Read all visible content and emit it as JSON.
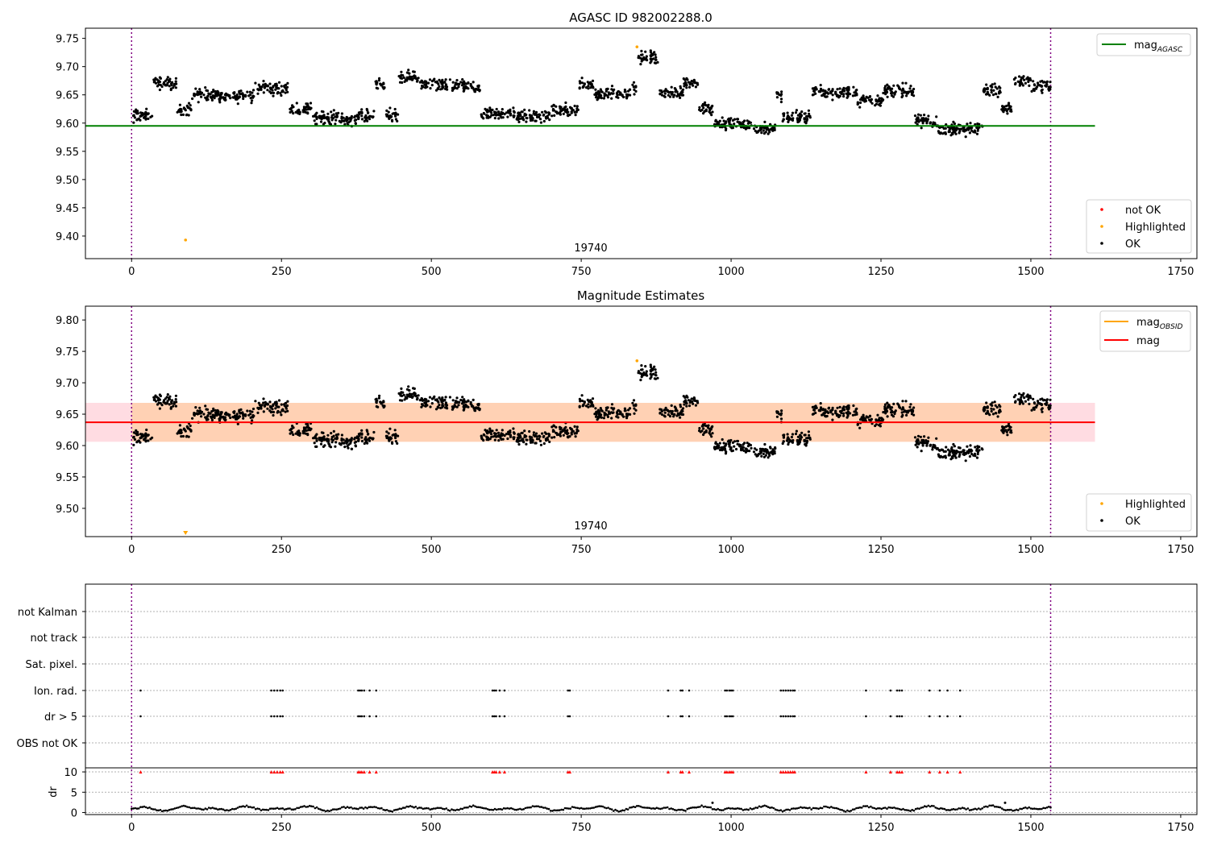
{
  "chart_data": [
    {
      "type": "scatter",
      "title": "AGASC ID 982002288.0",
      "xlabel": "",
      "ylabel": "",
      "xlim": [
        -77,
        1777
      ],
      "ylim": [
        9.36,
        9.768
      ],
      "x_ticks": [
        "0",
        "250",
        "500",
        "750",
        "1000",
        "1250",
        "1500",
        "1750"
      ],
      "y_ticks": [
        "9.40",
        "9.45",
        "9.50",
        "9.55",
        "9.60",
        "9.65",
        "9.70",
        "9.75"
      ],
      "grid": false,
      "obsid_label": "19740",
      "obsid_x": 764,
      "boundaries_x": [
        0,
        1533
      ],
      "reference_line": {
        "name": "mag_AGASC",
        "y": 9.595,
        "x_range": [
          -77,
          1607
        ],
        "color": "#008000"
      },
      "legend_lines": [
        {
          "label": "mag",
          "sub": "AGASC",
          "color": "#008000"
        }
      ],
      "legend_points": [
        {
          "label": "not OK",
          "color": "#ff0000"
        },
        {
          "label": "Highlighted",
          "color": "#ffa500"
        },
        {
          "label": "OK",
          "color": "#000000"
        }
      ],
      "highlighted": [
        {
          "x": 90,
          "y": 9.393
        },
        {
          "x": 843,
          "y": 9.735
        }
      ]
    },
    {
      "type": "scatter",
      "title": "Magnitude Estimates",
      "xlabel": "",
      "ylabel": "",
      "xlim": [
        -77,
        1777
      ],
      "ylim": [
        9.455,
        9.822
      ],
      "x_ticks": [
        "0",
        "250",
        "500",
        "750",
        "1000",
        "1250",
        "1500",
        "1750"
      ],
      "y_ticks": [
        "9.50",
        "9.55",
        "9.60",
        "9.65",
        "9.70",
        "9.75",
        "9.80"
      ],
      "grid": false,
      "obsid_label": "19740",
      "obsid_x": 764,
      "boundaries_x": [
        0,
        1533
      ],
      "mag_line": {
        "name": "mag",
        "y": 9.637,
        "band": [
          9.606,
          9.668
        ],
        "x_range": [
          -77,
          1607
        ],
        "color": "#ff0000",
        "band_color": "#ffc0cb"
      },
      "mag_obsid": {
        "name": "mag_OBSID",
        "y": 9.637,
        "band": [
          9.606,
          9.668
        ],
        "x_range": [
          0,
          1533
        ],
        "color": "#ffa500"
      },
      "legend_lines": [
        {
          "label": "mag",
          "sub": "OBSID",
          "color": "#ffa500"
        },
        {
          "label": "mag",
          "sub": "",
          "color": "#ff0000"
        }
      ],
      "legend_points": [
        {
          "label": "Highlighted",
          "color": "#ffa500"
        },
        {
          "label": "OK",
          "color": "#000000"
        }
      ],
      "highlighted": [
        {
          "x": 843,
          "y": 9.735
        }
      ],
      "offscale_marker": {
        "x": 90,
        "color": "#ffa500"
      }
    },
    {
      "type": "scatter",
      "title": "",
      "xlim": [
        -77,
        1777
      ],
      "x_ticks": [
        "0",
        "250",
        "500",
        "750",
        "1000",
        "1250",
        "1500",
        "1750"
      ],
      "boundaries_x": [
        0,
        1533
      ],
      "flag_rows": [
        "not Kalman",
        "not track",
        "Sat. pixel.",
        "Ion. rad.",
        "dr > 5",
        "OBS not OK"
      ],
      "flag_events_x": [
        15,
        233,
        238,
        243,
        248,
        252,
        378,
        381,
        384,
        388,
        397,
        408,
        602,
        605,
        608,
        614,
        622,
        728,
        731,
        895,
        916,
        919,
        930,
        990,
        993,
        997,
        1000,
        1003,
        1083,
        1087,
        1091,
        1095,
        1099,
        1103,
        1106,
        1225,
        1266,
        1277,
        1281,
        1285,
        1331,
        1348,
        1361,
        1382
      ],
      "dr_panel": {
        "ylabel": "dr",
        "ylim": [
          -0.5,
          11
        ],
        "y_ticks": [
          "0",
          "5",
          "10"
        ],
        "clip_value": 10,
        "clip_color": "#ff0000",
        "values_note": ""
      }
    }
  ]
}
